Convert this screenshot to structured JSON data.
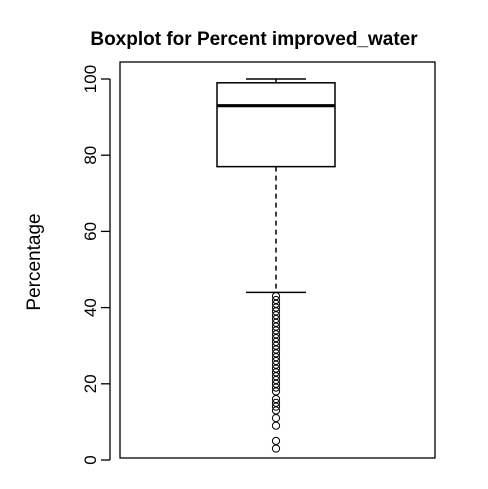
{
  "chart_data": {
    "type": "boxplot",
    "title": "Boxplot for Percent improved_water",
    "xlabel": "",
    "ylabel": "Percentage",
    "ylim": [
      0,
      100
    ],
    "yticks": [
      0,
      20,
      40,
      60,
      80,
      100
    ],
    "grid": false,
    "box": {
      "whisker_low": 44,
      "q1": 77,
      "median": 93,
      "q3": 99,
      "whisker_high": 100
    },
    "outliers": [
      3,
      5,
      9,
      11,
      13,
      14,
      15,
      16,
      18,
      19,
      20,
      21,
      22,
      23,
      24,
      25,
      26,
      27,
      28,
      29,
      30,
      31,
      32,
      33,
      34,
      35,
      36,
      37,
      38,
      39,
      40,
      41,
      42,
      43
    ]
  }
}
